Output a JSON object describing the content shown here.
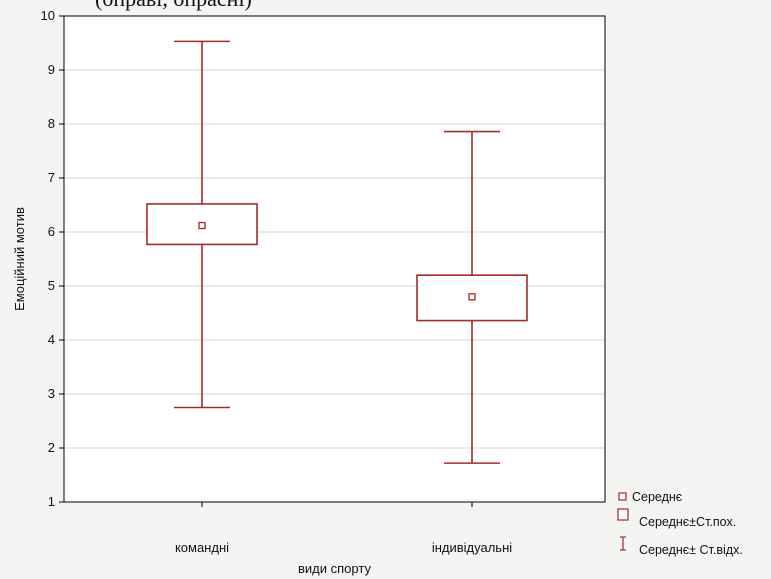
{
  "figure": {
    "top_cropped_caption": "(оправі, опрасні)"
  },
  "chart_data": {
    "type": "box",
    "title": "",
    "xlabel": "види спорту",
    "ylabel": "Емоційний мотив",
    "ylim": [
      1,
      10
    ],
    "yticks": [
      1,
      2,
      3,
      4,
      5,
      6,
      7,
      8,
      9,
      10
    ],
    "grid": true,
    "legend_position": "bottom-right",
    "categories": [
      "командні",
      "індивідуальні"
    ],
    "series": [
      {
        "category": "командні",
        "mean": 6.12,
        "se_low": 5.77,
        "se_high": 6.52,
        "sd_low": 2.75,
        "sd_high": 9.53
      },
      {
        "category": "індивідуальні",
        "mean": 4.8,
        "se_low": 4.36,
        "se_high": 5.2,
        "sd_low": 1.72,
        "sd_high": 7.86
      }
    ],
    "legend": [
      {
        "symbol": "small-square",
        "label": "Середнє"
      },
      {
        "symbol": "box",
        "label": "Середнє±Ст.пох."
      },
      {
        "symbol": "whisker",
        "label": "Середнє± Ст.відх."
      }
    ],
    "colors": {
      "box": "#a52a2a",
      "grid": "#d6d6d6",
      "frame": "#000000",
      "plot_bg": "#ffffff",
      "figure_bg": "#f4f4f2"
    }
  }
}
